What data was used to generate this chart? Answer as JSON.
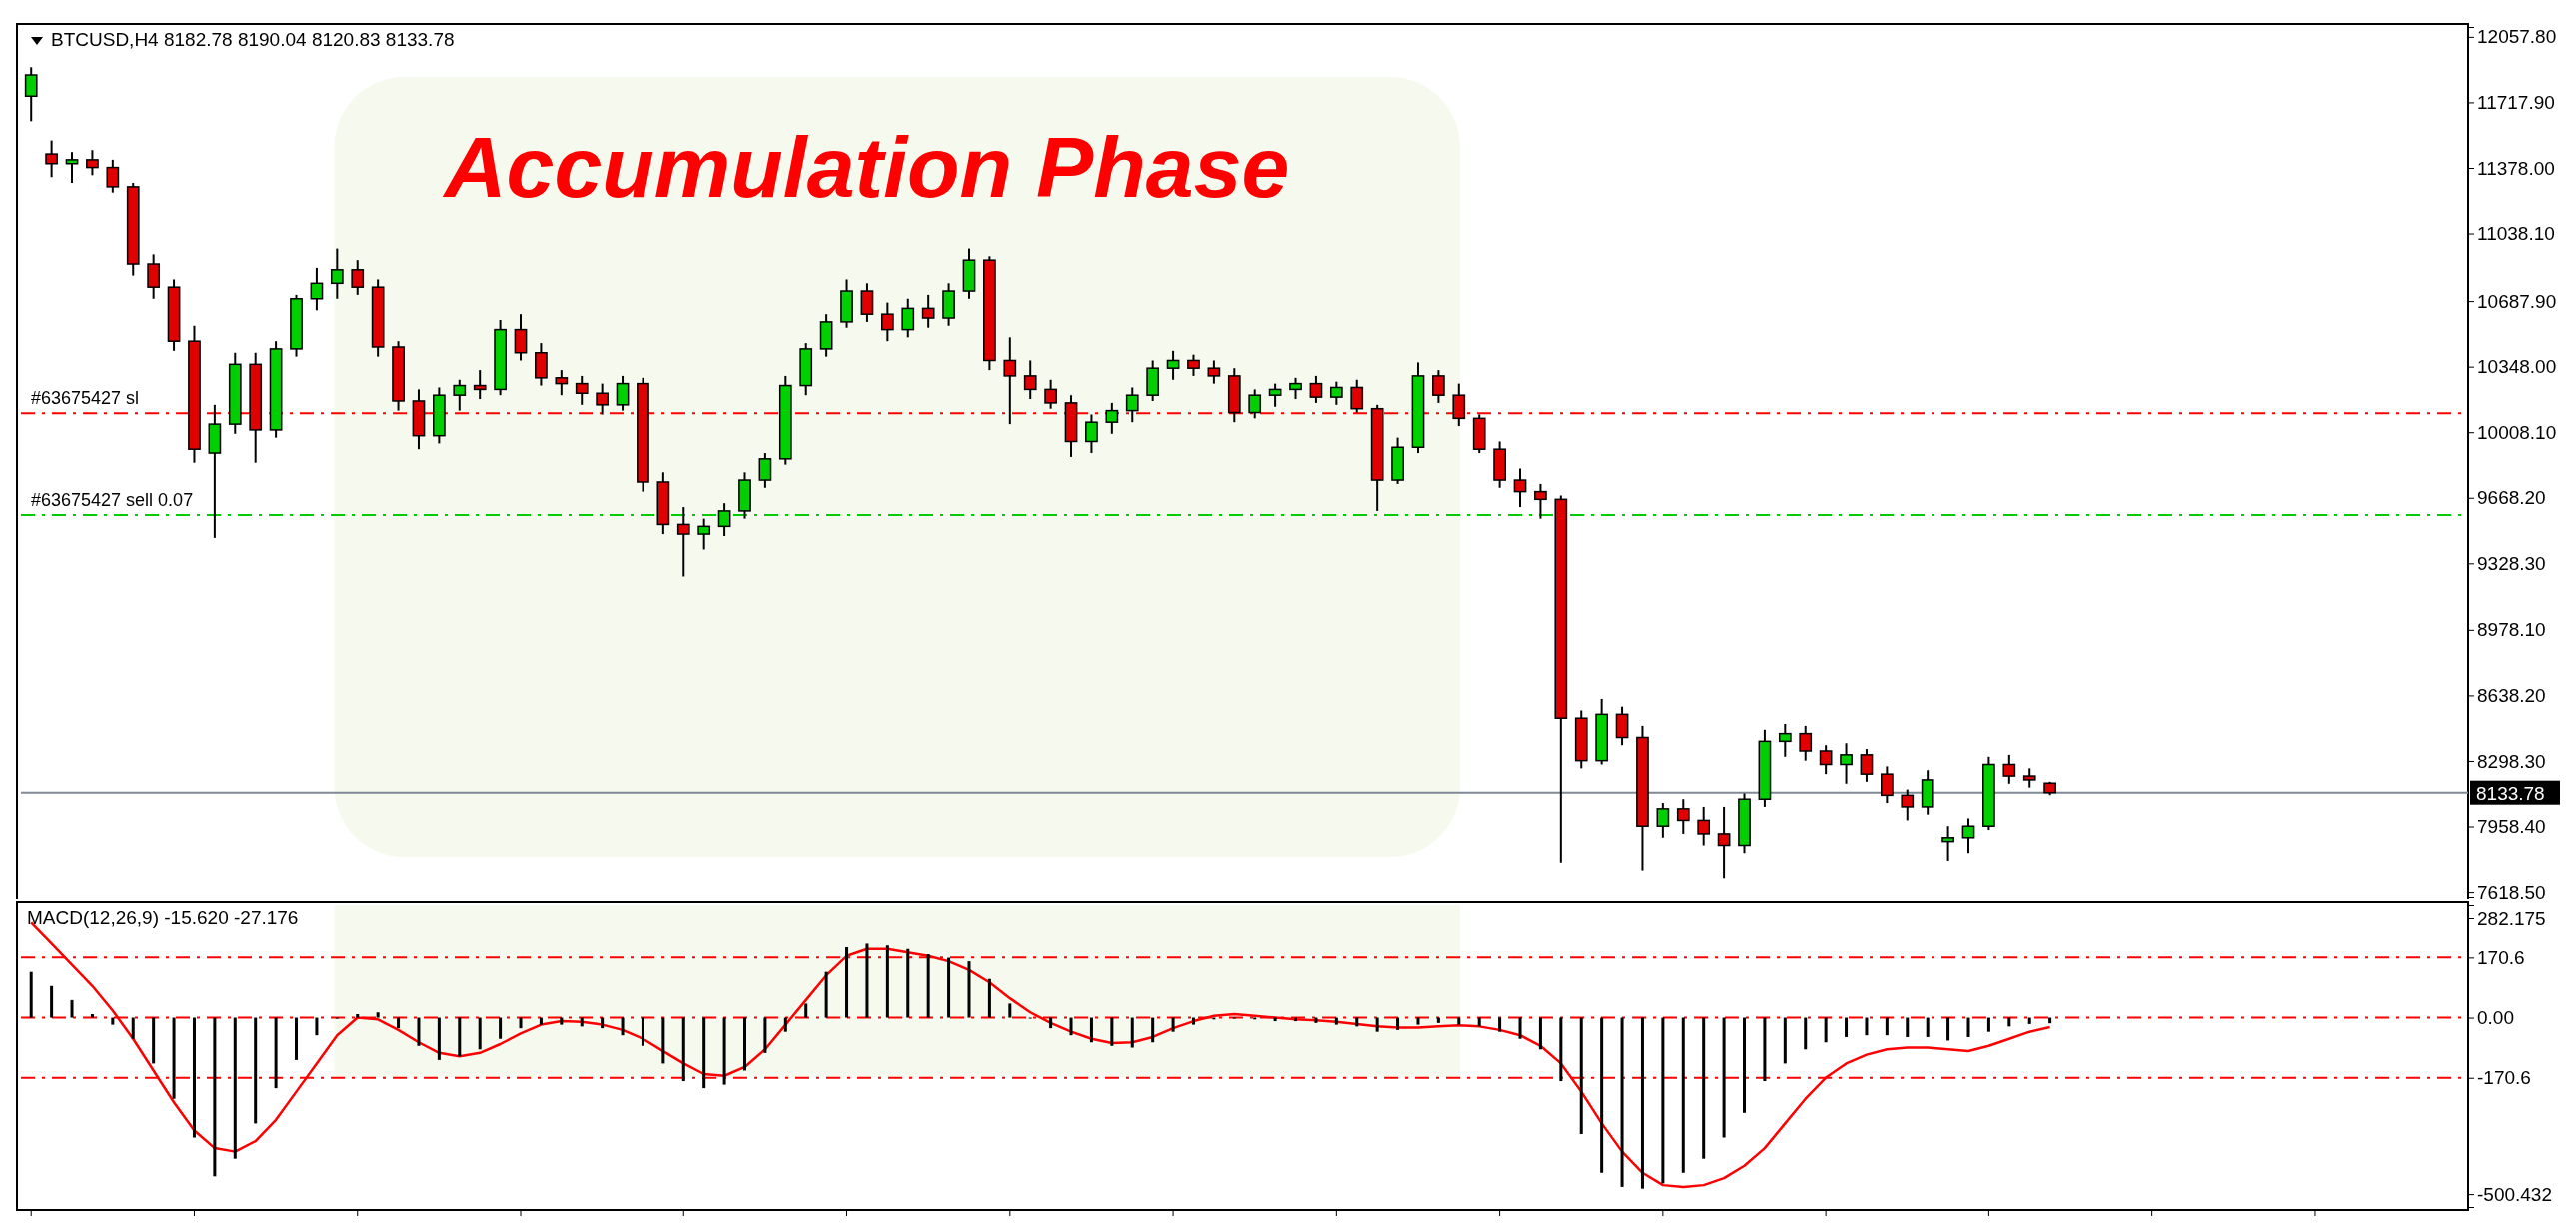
{
  "chart_data": [
    {
      "type": "candlestick",
      "title": "BTCUSD,H4  8182.78 8190.04 8120.83 8133.78",
      "categories": [
        null,
        null,
        null,
        null,
        null,
        null,
        null,
        null,
        null,
        null,
        null,
        null,
        null,
        null,
        null,
        null,
        null,
        null,
        null,
        null,
        null,
        null,
        null,
        null,
        null,
        null,
        null,
        null,
        null,
        null,
        null,
        null,
        null,
        null,
        null,
        null,
        null,
        null,
        null,
        null,
        null,
        null,
        null,
        null,
        null,
        null,
        null,
        null,
        null,
        null,
        null,
        null,
        null,
        null,
        null,
        null,
        null,
        null,
        null,
        null,
        null,
        null,
        null,
        null,
        null,
        null,
        null,
        null,
        null,
        null,
        null,
        null,
        null,
        null,
        null,
        null,
        null,
        null,
        null,
        null,
        null,
        null,
        null,
        null,
        null,
        null,
        null,
        null,
        null,
        null,
        null,
        null,
        null,
        null,
        null,
        null,
        null,
        null,
        null,
        null,
        null,
        null,
        null,
        null,
        null,
        null,
        null,
        null,
        null,
        null,
        null,
        null,
        null,
        null,
        null,
        null,
        null,
        null,
        null,
        null
      ],
      "ohlc": [
        [
          11750,
          11900,
          11620,
          11860
        ],
        [
          11450,
          11520,
          11330,
          11400
        ],
        [
          11400,
          11460,
          11300,
          11420
        ],
        [
          11420,
          11470,
          11340,
          11380
        ],
        [
          11380,
          11420,
          11250,
          11280
        ],
        [
          11280,
          11300,
          10820,
          10880
        ],
        [
          10880,
          10930,
          10700,
          10760
        ],
        [
          10760,
          10800,
          10430,
          10480
        ],
        [
          10480,
          10560,
          9850,
          9920
        ],
        [
          9900,
          10150,
          9460,
          10050
        ],
        [
          10050,
          10420,
          10000,
          10360
        ],
        [
          10360,
          10420,
          9850,
          10020
        ],
        [
          10020,
          10480,
          9980,
          10440
        ],
        [
          10440,
          10720,
          10400,
          10700
        ],
        [
          10700,
          10860,
          10640,
          10780
        ],
        [
          10780,
          10960,
          10700,
          10850
        ],
        [
          10850,
          10900,
          10720,
          10760
        ],
        [
          10760,
          10800,
          10400,
          10450
        ],
        [
          10450,
          10480,
          10120,
          10170
        ],
        [
          10170,
          10230,
          9920,
          9990
        ],
        [
          9990,
          10240,
          9950,
          10200
        ],
        [
          10200,
          10280,
          10120,
          10250
        ],
        [
          10250,
          10330,
          10180,
          10230
        ],
        [
          10230,
          10590,
          10200,
          10540
        ],
        [
          10540,
          10620,
          10380,
          10420
        ],
        [
          10420,
          10470,
          10250,
          10290
        ],
        [
          10290,
          10330,
          10200,
          10260
        ],
        [
          10260,
          10300,
          10150,
          10210
        ],
        [
          10210,
          10260,
          10100,
          10150
        ],
        [
          10150,
          10300,
          10120,
          10260
        ],
        [
          10260,
          10290,
          9700,
          9750
        ],
        [
          9750,
          9800,
          9480,
          9530
        ],
        [
          9530,
          9620,
          9260,
          9480
        ],
        [
          9480,
          9560,
          9400,
          9520
        ],
        [
          9520,
          9640,
          9470,
          9600
        ],
        [
          9600,
          9800,
          9560,
          9760
        ],
        [
          9760,
          9900,
          9720,
          9870
        ],
        [
          9870,
          10300,
          9840,
          10250
        ],
        [
          10250,
          10470,
          10200,
          10440
        ],
        [
          10440,
          10620,
          10400,
          10580
        ],
        [
          10580,
          10800,
          10550,
          10740
        ],
        [
          10740,
          10780,
          10580,
          10620
        ],
        [
          10620,
          10680,
          10480,
          10540
        ],
        [
          10540,
          10700,
          10500,
          10650
        ],
        [
          10650,
          10720,
          10550,
          10600
        ],
        [
          10600,
          10780,
          10560,
          10740
        ],
        [
          10740,
          10960,
          10700,
          10900
        ],
        [
          10900,
          10920,
          10330,
          10380
        ],
        [
          10380,
          10500,
          10050,
          10300
        ],
        [
          10300,
          10380,
          10180,
          10230
        ],
        [
          10230,
          10280,
          10130,
          10160
        ],
        [
          10160,
          10200,
          9880,
          9960
        ],
        [
          9960,
          10100,
          9900,
          10060
        ],
        [
          10060,
          10160,
          10000,
          10120
        ],
        [
          10120,
          10240,
          10060,
          10200
        ],
        [
          10200,
          10380,
          10170,
          10340
        ],
        [
          10340,
          10430,
          10280,
          10380
        ],
        [
          10380,
          10410,
          10300,
          10340
        ],
        [
          10340,
          10380,
          10260,
          10300
        ],
        [
          10300,
          10340,
          10060,
          10110
        ],
        [
          10110,
          10230,
          10080,
          10200
        ],
        [
          10200,
          10260,
          10140,
          10230
        ],
        [
          10230,
          10290,
          10180,
          10260
        ],
        [
          10260,
          10300,
          10160,
          10190
        ],
        [
          10190,
          10270,
          10150,
          10240
        ],
        [
          10240,
          10280,
          10110,
          10130
        ],
        [
          10130,
          10150,
          9600,
          9760
        ],
        [
          9760,
          9980,
          9740,
          9930
        ],
        [
          9930,
          10370,
          9900,
          10300
        ],
        [
          10300,
          10330,
          10160,
          10200
        ],
        [
          10200,
          10260,
          10040,
          10080
        ],
        [
          10080,
          10100,
          9900,
          9920
        ],
        [
          9920,
          9960,
          9720,
          9760
        ],
        [
          9760,
          9820,
          9620,
          9700
        ],
        [
          9700,
          9740,
          9560,
          9660
        ],
        [
          9660,
          9680,
          7770,
          8520
        ],
        [
          8520,
          8560,
          8260,
          8300
        ],
        [
          8300,
          8620,
          8280,
          8540
        ],
        [
          8540,
          8580,
          8380,
          8420
        ],
        [
          8420,
          8480,
          7730,
          7960
        ],
        [
          7960,
          8080,
          7900,
          8050
        ],
        [
          8050,
          8100,
          7920,
          7990
        ],
        [
          7990,
          8060,
          7860,
          7920
        ],
        [
          7920,
          8060,
          7690,
          7860
        ],
        [
          7860,
          8130,
          7820,
          8100
        ],
        [
          8100,
          8460,
          8060,
          8400
        ],
        [
          8400,
          8490,
          8320,
          8440
        ],
        [
          8440,
          8480,
          8300,
          8350
        ],
        [
          8350,
          8380,
          8230,
          8280
        ],
        [
          8280,
          8390,
          8180,
          8330
        ],
        [
          8330,
          8360,
          8190,
          8230
        ],
        [
          8230,
          8270,
          8080,
          8120
        ],
        [
          8120,
          8150,
          7990,
          8060
        ],
        [
          8060,
          8250,
          8020,
          8200
        ],
        [
          7880,
          7960,
          7780,
          7900
        ],
        [
          7900,
          8000,
          7820,
          7960
        ],
        [
          7960,
          8320,
          7940,
          8280
        ],
        [
          8280,
          8330,
          8180,
          8220
        ],
        [
          8220,
          8260,
          8160,
          8200
        ],
        [
          8182.78,
          8190.04,
          8120.83,
          8133.78
        ],
        null,
        null,
        null,
        null,
        null,
        null,
        null,
        null,
        null,
        null,
        null,
        null,
        null,
        null,
        null,
        null,
        null,
        null,
        null,
        null
      ],
      "colors": [
        "#00d000",
        "#e00000",
        "#00d000",
        "#e00000",
        "#e00000",
        "#e00000",
        "#e00000",
        "#e00000",
        "#e00000",
        "#00d000",
        "#00d000",
        "#e00000",
        "#00d000",
        "#00d000",
        "#00d000",
        "#00d000",
        "#e00000",
        "#e00000",
        "#e00000",
        "#e00000",
        "#00d000",
        "#00d000",
        "#e00000",
        "#00d000",
        "#e00000",
        "#e00000",
        "#e00000",
        "#e00000",
        "#e00000",
        "#00d000",
        "#e00000",
        "#e00000",
        "#e00000",
        "#00d000",
        "#00d000",
        "#00d000",
        "#00d000",
        "#00d000",
        "#00d000",
        "#00d000",
        "#00d000",
        "#e00000",
        "#e00000",
        "#00d000",
        "#e00000",
        "#00d000",
        "#00d000",
        "#e00000",
        "#e00000",
        "#e00000",
        "#e00000",
        "#e00000",
        "#00d000",
        "#00d000",
        "#00d000",
        "#00d000",
        "#00d000",
        "#e00000",
        "#e00000",
        "#e00000",
        "#00d000",
        "#00d000",
        "#00d000",
        "#e00000",
        "#00d000",
        "#e00000",
        "#e00000",
        "#00d000",
        "#00d000",
        "#e00000",
        "#e00000",
        "#e00000",
        "#e00000",
        "#e00000",
        "#e00000",
        "#e00000",
        "#e00000",
        "#00d000",
        "#e00000",
        "#e00000",
        "#00d000",
        "#e00000",
        "#e00000",
        "#e00000",
        "#00d000",
        "#00d000",
        "#00d000",
        "#e00000",
        "#e00000",
        "#00d000",
        "#e00000",
        "#e00000",
        "#e00000",
        "#00d000",
        "#00d000",
        "#00d000",
        "#00d000",
        "#e00000",
        "#e00000",
        "#e00000",
        null,
        null,
        null,
        null,
        null,
        null,
        null,
        null,
        null,
        null,
        null,
        null,
        null,
        null,
        null,
        null,
        null,
        null,
        null,
        null
      ],
      "ylim": [
        7593,
        12109
      ],
      "yticks": [
        {
          "value": 12057.8,
          "label": "12057.80"
        },
        {
          "value": 11717.9,
          "label": "11717.90"
        },
        {
          "value": 11378,
          "label": "11378.00"
        },
        {
          "value": 11038.1,
          "label": "11038.10"
        },
        {
          "value": 10687.9,
          "label": "10687.90"
        },
        {
          "value": 10348,
          "label": "10348.00"
        },
        {
          "value": 10008.1,
          "label": "10008.10"
        },
        {
          "value": 9668.2,
          "label": "9668.20"
        },
        {
          "value": 9328.3,
          "label": "9328.30"
        },
        {
          "value": 8978.1,
          "label": "8978.10"
        },
        {
          "value": 8638.2,
          "label": "8638.20"
        },
        {
          "value": 8298.3,
          "label": "8298.30"
        },
        {
          "value": 7958.4,
          "label": "7958.40"
        },
        {
          "value": 7618.5,
          "label": "7618.50"
        }
      ],
      "ref_lines": [
        {
          "axis": "y",
          "value": 10107,
          "label": "#63675427 sl",
          "color": "#ff0000",
          "line_style": "dashed"
        },
        {
          "axis": "y",
          "value": 9579,
          "label": "#63675427 sell 0.07",
          "color": "#00cc00",
          "line_style": "dashed"
        },
        {
          "axis": "y",
          "value": 8133.78,
          "label": "8133.78",
          "color": "#7f8a99",
          "line_style": "solid"
        }
      ],
      "annotations": [
        "Accumulation Phase"
      ],
      "grid": false,
      "tick_labels": "y"
    },
    {
      "type": "bar",
      "title": "MACD(12,26,9) -15.620 -27.176",
      "categories": [
        null,
        null,
        null,
        null,
        null,
        null,
        null,
        null,
        null,
        null,
        null,
        null,
        null,
        null,
        null,
        null,
        null,
        null,
        null,
        null,
        null,
        null,
        null,
        null,
        null,
        null,
        null,
        null,
        null,
        null,
        null,
        null,
        null,
        null,
        null,
        null,
        null,
        null,
        null,
        null,
        null,
        null,
        null,
        null,
        null,
        null,
        null,
        null,
        null,
        null,
        null,
        null,
        null,
        null,
        null,
        null,
        null,
        null,
        null,
        null,
        null,
        null,
        null,
        null,
        null,
        null,
        null,
        null,
        null,
        null,
        null,
        null,
        null,
        null,
        null,
        null,
        null,
        null,
        null,
        null,
        null,
        null,
        null,
        null,
        null,
        null,
        null,
        null,
        null,
        null,
        null,
        null,
        null,
        null,
        null,
        null,
        null,
        null,
        null,
        null,
        null,
        null,
        null,
        null,
        null,
        null,
        null,
        null,
        null,
        null,
        null,
        null,
        null,
        null,
        null,
        null,
        null,
        null,
        null,
        null
      ],
      "series": [
        {
          "type": "bar",
          "color": "#000000",
          "values": [
            130,
            90,
            50,
            10,
            -20,
            -60,
            -130,
            -230,
            -340,
            -450,
            -400,
            -300,
            -200,
            -120,
            -50,
            0,
            10,
            15,
            -30,
            -80,
            -120,
            -110,
            -90,
            -60,
            -30,
            -20,
            -20,
            -25,
            -30,
            -50,
            -80,
            -130,
            -180,
            -200,
            -190,
            -150,
            -100,
            -40,
            40,
            130,
            200,
            210,
            205,
            195,
            180,
            170,
            160,
            110,
            40,
            0,
            -30,
            -50,
            -70,
            -80,
            -85,
            -70,
            -40,
            -20,
            -5,
            0,
            -5,
            -10,
            -10,
            -15,
            -20,
            -25,
            -40,
            -35,
            -20,
            -15,
            -20,
            -25,
            -40,
            -60,
            -90,
            -180,
            -330,
            -440,
            -480,
            -485,
            -470,
            -440,
            -400,
            -340,
            -270,
            -180,
            -130,
            -90,
            -70,
            -55,
            -50,
            -50,
            -55,
            -55,
            -65,
            -55,
            -40,
            -25,
            -18,
            -16,
            null,
            null,
            null,
            null,
            null,
            null,
            null,
            null,
            null,
            null,
            null,
            null,
            null,
            null,
            null,
            null,
            null,
            null,
            null,
            null
          ]
        },
        {
          "type": "line",
          "color": "#ff0000",
          "values": [
            270,
            210,
            150,
            90,
            20,
            -60,
            -150,
            -240,
            -320,
            -370,
            -380,
            -350,
            -290,
            -210,
            -130,
            -50,
            0,
            -5,
            -35,
            -70,
            -100,
            -110,
            -100,
            -75,
            -45,
            -20,
            -10,
            -12,
            -20,
            -35,
            -60,
            -95,
            -130,
            -160,
            -165,
            -140,
            -90,
            -20,
            50,
            120,
            175,
            195,
            195,
            185,
            175,
            160,
            135,
            100,
            55,
            15,
            -15,
            -40,
            -60,
            -72,
            -70,
            -55,
            -30,
            -10,
            5,
            10,
            5,
            0,
            -5,
            -8,
            -12,
            -18,
            -25,
            -28,
            -28,
            -25,
            -22,
            -25,
            -35,
            -50,
            -80,
            -130,
            -210,
            -300,
            -380,
            -440,
            -475,
            -480,
            -475,
            -455,
            -420,
            -370,
            -300,
            -230,
            -170,
            -130,
            -105,
            -90,
            -85,
            -85,
            -90,
            -95,
            -80,
            -60,
            -40,
            -27,
            null,
            null,
            null,
            null,
            null,
            null,
            null,
            null,
            null,
            null,
            null,
            null,
            null,
            null,
            null,
            null,
            null,
            null,
            null,
            null
          ]
        }
      ],
      "ylim": [
        -537,
        319
      ],
      "yticks": [
        282.175,
        170.6,
        {
          "value": 0,
          "label": "0.00"
        },
        -170.6,
        -500.432
      ],
      "ref_lines": [
        {
          "axis": "y",
          "value": 170.6,
          "color": "#ff0000",
          "line_style": "dashed"
        },
        {
          "axis": "y",
          "value": 0,
          "color": "#ff0000",
          "line_style": "dashed"
        },
        {
          "axis": "y",
          "value": -170.6,
          "color": "#ff0000",
          "line_style": "dashed"
        }
      ],
      "grid": false,
      "tick_labels": "y"
    }
  ]
}
